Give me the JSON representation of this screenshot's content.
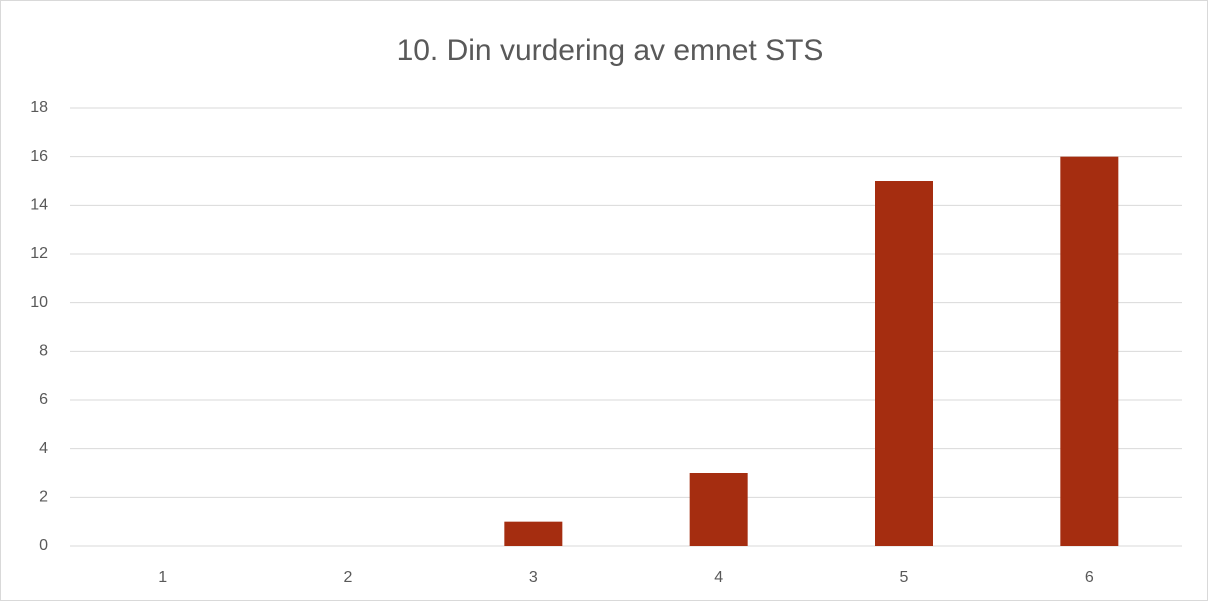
{
  "chart_data": {
    "type": "bar",
    "title": "10. Din vurdering av emnet STS",
    "categories": [
      "1",
      "2",
      "3",
      "4",
      "5",
      "6"
    ],
    "values": [
      0,
      0,
      1,
      3,
      15,
      16
    ],
    "color": "#a52d10",
    "ylim": [
      0,
      18
    ],
    "yticks": [
      0,
      2,
      4,
      6,
      8,
      10,
      12,
      14,
      16,
      18
    ],
    "grid": true
  }
}
